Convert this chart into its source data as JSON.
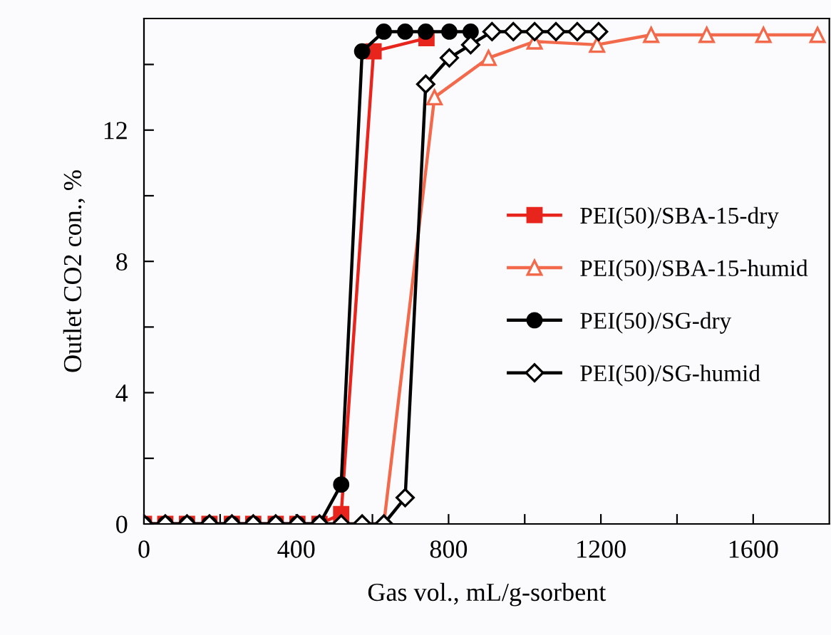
{
  "chart_data": {
    "type": "line",
    "xlabel": "Gas vol., mL/g-sorbent",
    "ylabel": "Outlet CO2 con., %",
    "xlim": [
      0,
      1800
    ],
    "ylim": [
      0,
      15.4
    ],
    "xticks": [
      0,
      {
        "value": 200,
        "label": null
      },
      400,
      {
        "value": 600,
        "label": null
      },
      800,
      {
        "value": 1000,
        "label": null
      },
      1200,
      {
        "value": 1400,
        "label": null
      },
      1600
    ],
    "yticks": [
      0,
      {
        "value": 2,
        "label": null
      },
      4,
      {
        "value": 6,
        "label": null
      },
      8,
      {
        "value": 10,
        "label": null
      },
      12,
      {
        "value": 14,
        "label": null
      }
    ],
    "legend": "right",
    "grid": false,
    "line_style": "solid",
    "series": [
      {
        "name": "PEI(50)/SBA-15-dry",
        "color": "#e8251c",
        "marker": "square",
        "x": [
          0,
          56,
          113,
          172,
          231,
          287,
          346,
          403,
          461,
          518,
          603,
          742
        ],
        "values": [
          0,
          0,
          0,
          0,
          0,
          0,
          0,
          0,
          0,
          0.3,
          14.4,
          14.8
        ]
      },
      {
        "name": "PEI(50)/SBA-15-humid",
        "color": "#f26a4b",
        "marker": "triangle",
        "x": [
          0,
          56,
          113,
          172,
          231,
          287,
          346,
          403,
          461,
          518,
          573,
          630,
          763,
          905,
          1026,
          1190,
          1332,
          1478,
          1627,
          1769
        ],
        "values": [
          0,
          0,
          0,
          0,
          0,
          0,
          0,
          0,
          0,
          0,
          0,
          0,
          13.0,
          14.2,
          14.7,
          14.6,
          14.9,
          14.9,
          14.9,
          14.9
        ]
      },
      {
        "name": "PEI(50)/SG-dry",
        "color": "#000000",
        "marker": "circle",
        "x": [
          0,
          56,
          113,
          172,
          231,
          287,
          346,
          403,
          461,
          518,
          573,
          630,
          686,
          740,
          802,
          858
        ],
        "values": [
          0,
          0,
          0,
          0,
          0,
          0,
          0,
          0,
          0,
          1.2,
          14.4,
          15,
          15,
          15,
          15,
          15
        ]
      },
      {
        "name": "PEI(50)/SG-humid",
        "color": "#000000",
        "marker": "diamond",
        "x": [
          0,
          56,
          113,
          172,
          231,
          287,
          346,
          403,
          461,
          518,
          573,
          630,
          686,
          740,
          802,
          858,
          914,
          970,
          1026,
          1082,
          1138,
          1194
        ],
        "values": [
          0,
          0,
          0,
          0,
          0,
          0,
          0,
          0,
          0,
          0,
          0,
          0,
          0.8,
          13.4,
          14.2,
          14.6,
          15,
          15,
          15,
          15,
          15,
          15
        ]
      }
    ]
  }
}
